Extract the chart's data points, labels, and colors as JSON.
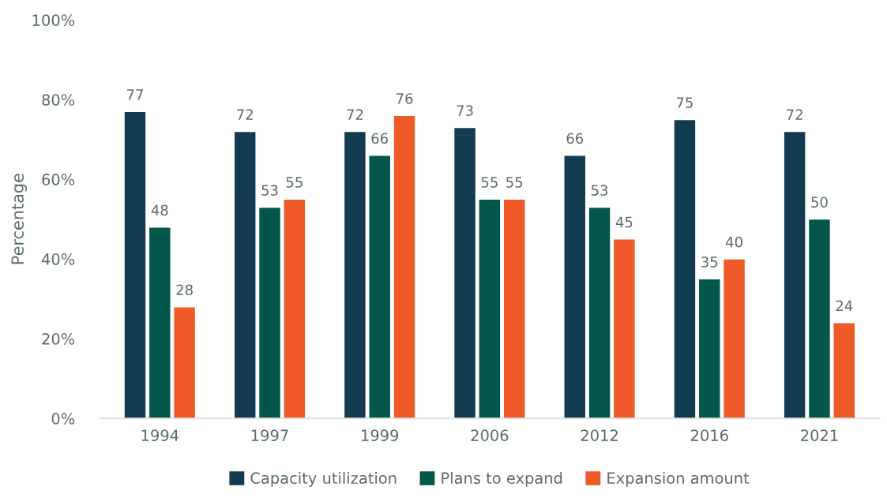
{
  "chart_data": {
    "type": "bar",
    "ylabel": "Percentage",
    "categories": [
      "1994",
      "1997",
      "1999",
      "2006",
      "2012",
      "2016",
      "2021"
    ],
    "series": [
      {
        "name": "Capacity utilization",
        "color": "#133b4f",
        "values": [
          77,
          72,
          72,
          73,
          66,
          75,
          72
        ]
      },
      {
        "name": "Plans to expand",
        "color": "#03574a",
        "values": [
          48,
          53,
          66,
          55,
          53,
          35,
          50
        ]
      },
      {
        "name": "Expansion amount",
        "color": "#f05a28",
        "values": [
          28,
          55,
          76,
          55,
          45,
          40,
          24
        ]
      }
    ],
    "ylim": [
      0,
      100
    ],
    "yticks": [
      {
        "value": 0,
        "label": "0%"
      },
      {
        "value": 20,
        "label": "20%"
      },
      {
        "value": 40,
        "label": "40%"
      },
      {
        "value": 60,
        "label": "60%"
      },
      {
        "value": 80,
        "label": "80%"
      },
      {
        "value": 100,
        "label": "100%"
      }
    ],
    "data_labels": true,
    "grid": false,
    "legend": "bottom"
  }
}
